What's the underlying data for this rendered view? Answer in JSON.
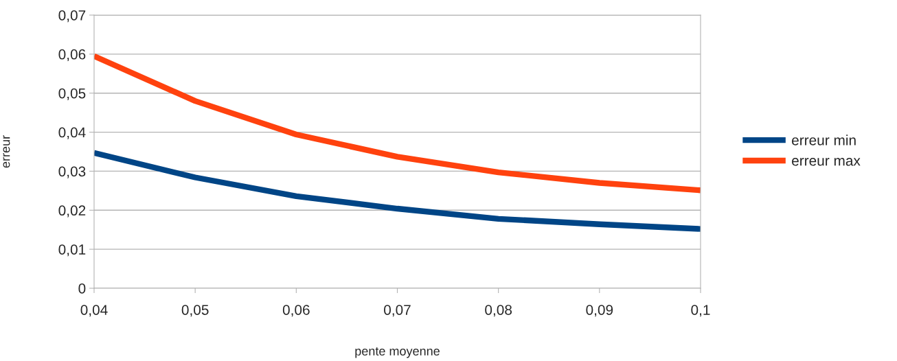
{
  "chart_data": {
    "type": "line",
    "xlabel": "pente moyenne",
    "ylabel": "erreur",
    "x": [
      0.04,
      0.05,
      0.06,
      0.07,
      0.08,
      0.09,
      0.1
    ],
    "series": [
      {
        "name": "erreur min",
        "color": "#004586",
        "values": [
          0.0347,
          0.0284,
          0.0236,
          0.0204,
          0.0178,
          0.0164,
          0.0152
        ]
      },
      {
        "name": "erreur max",
        "color": "#ff420e",
        "values": [
          0.0595,
          0.048,
          0.0394,
          0.0337,
          0.0297,
          0.027,
          0.0251
        ]
      }
    ],
    "xlim": [
      0.04,
      0.1
    ],
    "xticks": [
      {
        "value": 0.04,
        "label": "0,04"
      },
      {
        "value": 0.05,
        "label": "0,05"
      },
      {
        "value": 0.06,
        "label": "0,06"
      },
      {
        "value": 0.07,
        "label": "0,07"
      },
      {
        "value": 0.08,
        "label": "0,08"
      },
      {
        "value": 0.09,
        "label": "0,09"
      },
      {
        "value": 0.1,
        "label": "0,1"
      }
    ],
    "ylim": [
      0,
      0.07
    ],
    "yticks": [
      0,
      {
        "value": 0.01,
        "label": "0,01"
      },
      {
        "value": 0.02,
        "label": "0,02"
      },
      {
        "value": 0.03,
        "label": "0,03"
      },
      {
        "value": 0.04,
        "label": "0,04"
      },
      {
        "value": 0.05,
        "label": "0,05"
      },
      {
        "value": 0.06,
        "label": "0,06"
      },
      {
        "value": 0.07,
        "label": "0,07"
      }
    ],
    "grid": "y",
    "legend": "right",
    "marker": "none",
    "line_style": "solid"
  }
}
